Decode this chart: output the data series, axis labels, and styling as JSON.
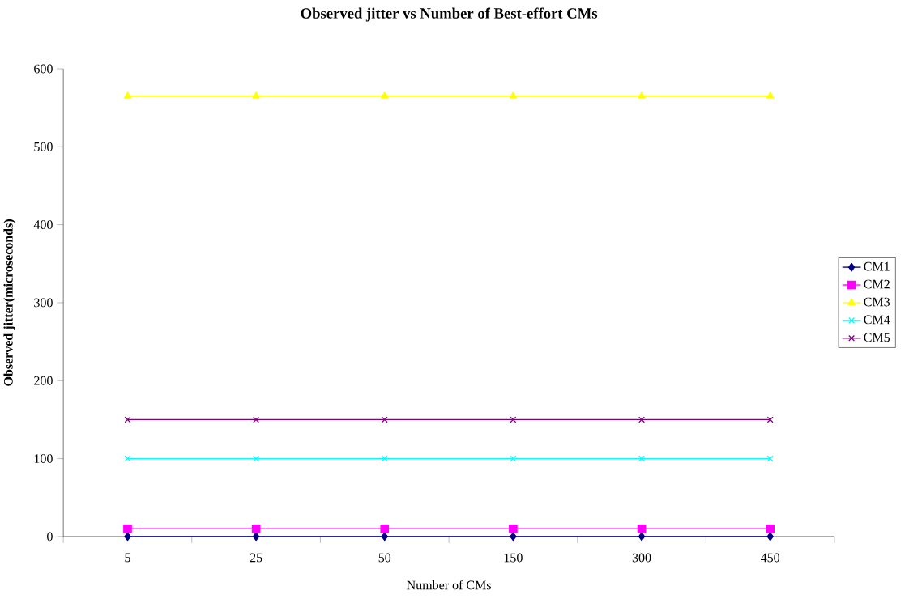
{
  "chart_data": {
    "type": "line",
    "title": "Observed jitter vs Number of Best-effort CMs",
    "xlabel": "Number of CMs",
    "ylabel": "Observed jitter(microseconds)",
    "categories": [
      "5",
      "25",
      "50",
      "150",
      "300",
      "450"
    ],
    "series": [
      {
        "name": "CM1",
        "color": "#000080",
        "marker": "diamond",
        "values": [
          0,
          0,
          0,
          0,
          0,
          0
        ]
      },
      {
        "name": "CM2",
        "color": "#ff00ff",
        "marker": "square",
        "values": [
          10,
          10,
          10,
          10,
          10,
          10
        ]
      },
      {
        "name": "CM3",
        "color": "#ffff00",
        "marker": "triangle",
        "values": [
          565,
          565,
          565,
          565,
          565,
          565
        ]
      },
      {
        "name": "CM4",
        "color": "#00ffff",
        "marker": "cross",
        "values": [
          100,
          100,
          100,
          100,
          100,
          100
        ]
      },
      {
        "name": "CM5",
        "color": "#800080",
        "marker": "cross",
        "values": [
          150,
          150,
          150,
          150,
          150,
          150
        ]
      }
    ],
    "ylim": [
      0,
      600
    ],
    "yticks": [
      0,
      100,
      200,
      300,
      400,
      500,
      600
    ],
    "grid": false,
    "legend": "right",
    "line_style": "solid"
  }
}
